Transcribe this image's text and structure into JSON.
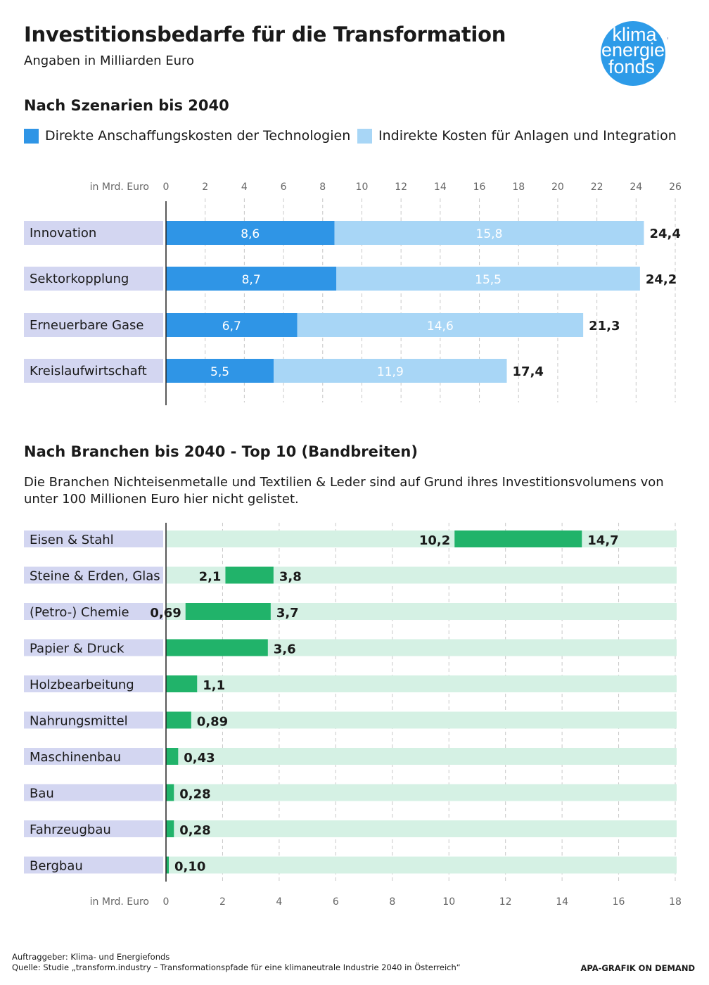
{
  "header": {
    "title": "Investitionsbedarfe für die Transformation",
    "subtitle": "Angaben in Milliarden Euro",
    "logo_lines": [
      "klima",
      "energie",
      "fonds"
    ],
    "logo_plus": "+"
  },
  "colors": {
    "direct": "#2f95e6",
    "indirect": "#a8d6f6",
    "range": "#21b36a",
    "range_bg": "#d5f1e4",
    "label_bg": "#d3d6f1",
    "grid": "#c8c8c8",
    "logo": "#2d9be8",
    "logo_plus": "#2a3c8f"
  },
  "section1": {
    "title": "Nach Szenarien bis 2040"
  },
  "legend": {
    "direct": "Direkte Anschaffungskosten der Technologien",
    "indirect": "Indirekte Kosten für Anlagen und Integration"
  },
  "section2": {
    "title": "Nach Branchen bis 2040 - Top 10 (Bandbreiten)",
    "note": "Die Branchen Nichteisenmetalle und Textilien & Leder sind auf Grund ihres Investitionsvolumens von unter 100 Millionen Euro hier nicht gelistet."
  },
  "footer": {
    "client": "Auftraggeber: Klima- und Energiefonds",
    "source": "Quelle: Studie „transform.industry – Transformationspfade für eine klimaneutrale Industrie 2040 in Österreich“",
    "credit": "APA-GRAFIK ON DEMAND"
  },
  "chart_data": [
    {
      "type": "bar",
      "orientation": "horizontal",
      "stacked": true,
      "title": "Nach Szenarien bis 2040",
      "unit_label": "in Mrd. Euro",
      "xlim": [
        0,
        26
      ],
      "xticks": [
        0,
        2,
        4,
        6,
        8,
        10,
        12,
        14,
        16,
        18,
        20,
        22,
        24,
        26
      ],
      "xtick_labels": [
        "0",
        "2",
        "4",
        "6",
        "8",
        "10",
        "12",
        "14",
        "16",
        "18",
        "20",
        "22",
        "24",
        "26"
      ],
      "axis_position": "top",
      "grid": true,
      "legend_position": "top-left",
      "categories": [
        "Innovation",
        "Sektorkopplung",
        "Erneuerbare Gase",
        "Kreislaufwirtschaft"
      ],
      "series": [
        {
          "name": "Direkte Anschaffungskosten der Technologien",
          "values": [
            8.6,
            8.7,
            6.7,
            5.5
          ],
          "labels": [
            "8,6",
            "8,7",
            "6,7",
            "5,5"
          ]
        },
        {
          "name": "Indirekte Kosten für Anlagen und Integration",
          "values": [
            15.8,
            15.5,
            14.6,
            11.9
          ],
          "labels": [
            "15,8",
            "15,5",
            "14,6",
            "11,9"
          ]
        }
      ],
      "totals": [
        24.4,
        24.2,
        21.3,
        17.4
      ],
      "total_labels": [
        "24,4",
        "24,2",
        "21,3",
        "17,4"
      ]
    },
    {
      "type": "bar",
      "orientation": "horizontal",
      "range": true,
      "title": "Nach Branchen bis 2040 - Top 10 (Bandbreiten)",
      "unit_label": "in Mrd. Euro",
      "xlim": [
        0,
        18
      ],
      "xticks": [
        0,
        2,
        4,
        6,
        8,
        10,
        12,
        14,
        16,
        18
      ],
      "xtick_labels": [
        "0",
        "2",
        "4",
        "6",
        "8",
        "10",
        "12",
        "14",
        "16",
        "18"
      ],
      "axis_position": "bottom",
      "grid": true,
      "categories": [
        "Eisen & Stahl",
        "Steine & Erden, Glas",
        "(Petro-) Chemie",
        "Papier & Druck",
        "Holzbearbeitung",
        "Nahrungsmittel",
        "Maschinenbau",
        "Bau",
        "Fahrzeugbau",
        "Bergbau"
      ],
      "min": [
        10.2,
        2.1,
        0.69,
        0,
        0,
        0,
        0,
        0,
        0,
        0
      ],
      "max": [
        14.7,
        3.8,
        3.7,
        3.6,
        1.1,
        0.89,
        0.43,
        0.28,
        0.28,
        0.1
      ],
      "min_labels": [
        "10,2",
        "2,1",
        "0,69",
        "",
        "",
        "",
        "",
        "",
        "",
        ""
      ],
      "max_labels": [
        "14,7",
        "3,8",
        "3,7",
        "3,6",
        "1,1",
        "0,89",
        "0,43",
        "0,28",
        "0,28",
        "0,10"
      ]
    }
  ]
}
